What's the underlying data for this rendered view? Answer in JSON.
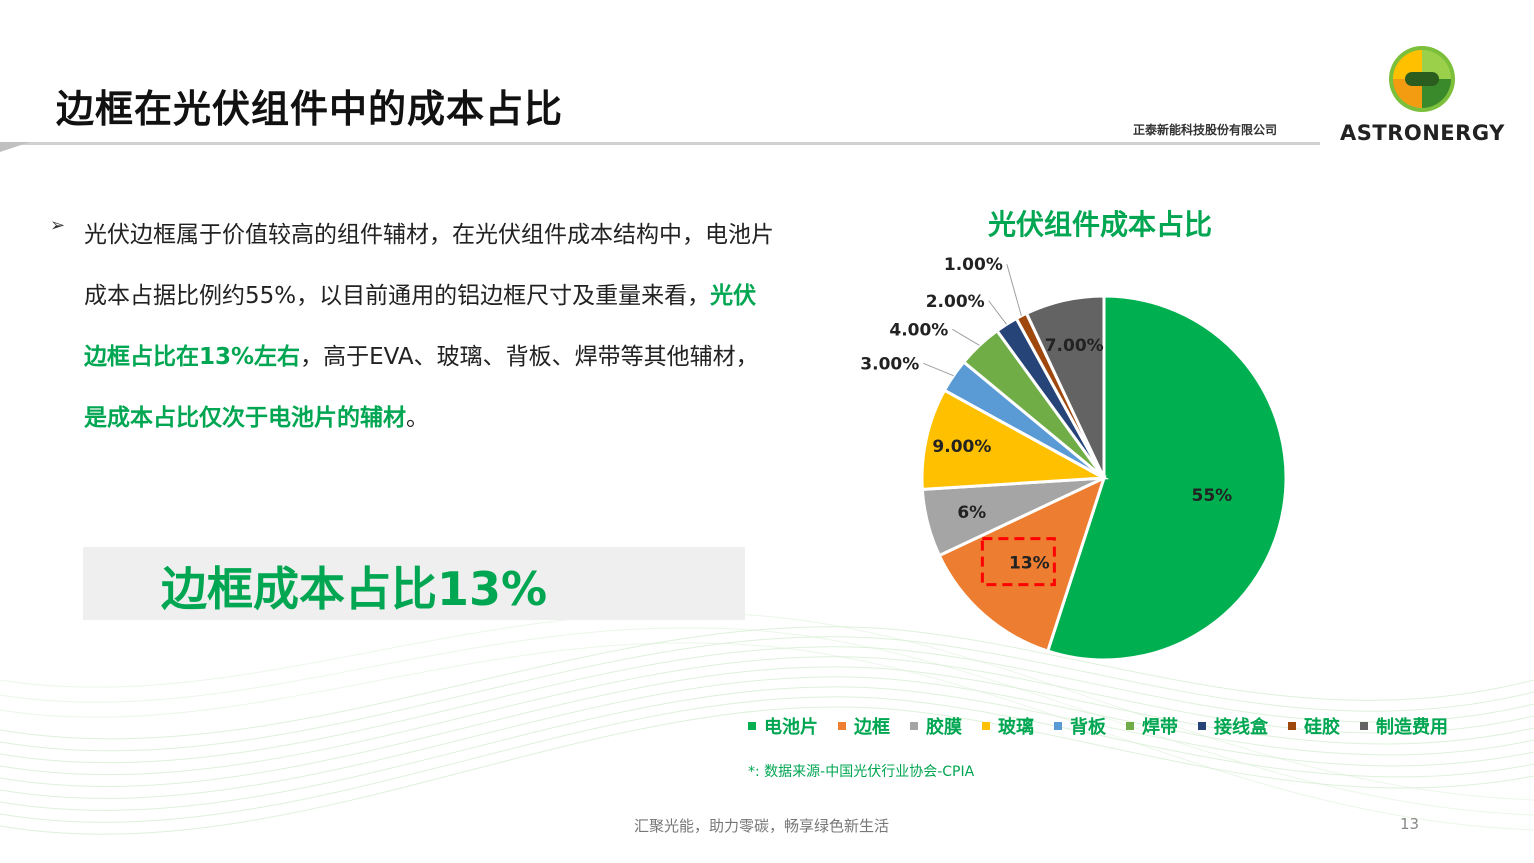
{
  "header": {
    "title": "边框在光伏组件中的成本占比",
    "company_cn": "正泰新能科技股份有限公司",
    "brand": "ASTRONERGY"
  },
  "body": {
    "bullet_icon": "arrow-bullet-icon",
    "para_part1": "光伏边框属于价值较高的组件辅材，在光伏组件成本结构中，电池片成本占据比例约55%，以目前通用的铝边框尺寸及重量来看，",
    "para_hl1": "光伏边框占比在13%左右",
    "para_part2": "，高于EVA、玻璃、背板、焊带等其他辅材，",
    "para_hl2": "是成本占比仅次于电池片的辅材",
    "para_end": "。"
  },
  "callout": {
    "text": "边框成本占比13%"
  },
  "chart_data": {
    "type": "pie",
    "title": "光伏组件成本占比",
    "categories": [
      "电池片",
      "边框",
      "胶膜",
      "玻璃",
      "背板",
      "焊带",
      "接线盒",
      "硅胶",
      "制造费用"
    ],
    "values": [
      55,
      13,
      6,
      9,
      3,
      4,
      2,
      1,
      7
    ],
    "data_labels": [
      "55%",
      "13%",
      "6%",
      "9.00%",
      "3.00%",
      "4.00%",
      "2.00%",
      "1.00%",
      "7.00%"
    ],
    "colors": [
      "#00b050",
      "#ed7d31",
      "#a5a5a5",
      "#ffc000",
      "#5b9bd5",
      "#70ad47",
      "#264478",
      "#9e480e",
      "#636363"
    ],
    "legend_position": "bottom",
    "highlight": "边框"
  },
  "source": "*:  数据来源-中国光伏行业协会-CPIA",
  "footer": {
    "slogan": "汇聚光能，助力零碳，畅享绿色新生活",
    "page": "13"
  }
}
